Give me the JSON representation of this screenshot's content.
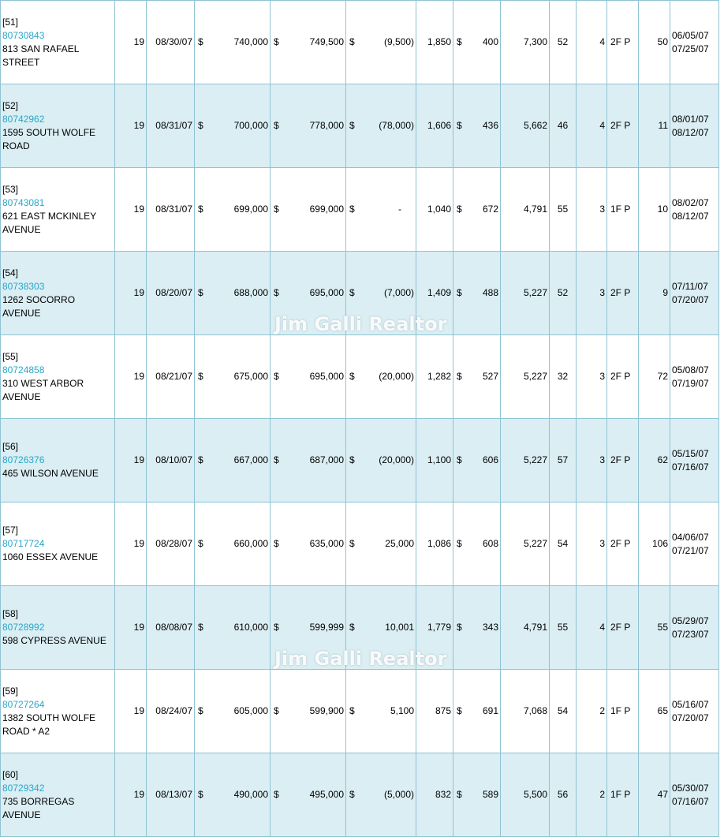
{
  "watermark": "Jim Galli Realtor",
  "currency_symbol": "$",
  "rows": [
    {
      "idx": "[51]",
      "mls": "80730843",
      "address": "813 SAN RAFAEL STREET",
      "zip": "19",
      "sold_date": "08/30/07",
      "sale_price": "740,000",
      "list_price": "749,500",
      "difference": "(9,500)",
      "sqft": "1,850",
      "price_sqft": "400",
      "lot": "7,300",
      "age": "52",
      "beds": "4",
      "style": "2F P",
      "dom": "50",
      "date1": "06/05/07",
      "date2": "07/25/07"
    },
    {
      "idx": "[52]",
      "mls": "80742962",
      "address": "1595 SOUTH WOLFE ROAD",
      "zip": "19",
      "sold_date": "08/31/07",
      "sale_price": "700,000",
      "list_price": "778,000",
      "difference": "(78,000)",
      "sqft": "1,606",
      "price_sqft": "436",
      "lot": "5,662",
      "age": "46",
      "beds": "4",
      "style": "2F P",
      "dom": "11",
      "date1": "08/01/07",
      "date2": "08/12/07"
    },
    {
      "idx": "[53]",
      "mls": "80743081",
      "address": "621 EAST MCKINLEY AVENUE",
      "zip": "19",
      "sold_date": "08/31/07",
      "sale_price": "699,000",
      "list_price": "699,000",
      "difference": "-",
      "sqft": "1,040",
      "price_sqft": "672",
      "lot": "4,791",
      "age": "55",
      "beds": "3",
      "style": "1F P",
      "dom": "10",
      "date1": "08/02/07",
      "date2": "08/12/07"
    },
    {
      "idx": "[54]",
      "mls": "80738303",
      "address": "1262 SOCORRO AVENUE",
      "zip": "19",
      "sold_date": "08/20/07",
      "sale_price": "688,000",
      "list_price": "695,000",
      "difference": "(7,000)",
      "sqft": "1,409",
      "price_sqft": "488",
      "lot": "5,227",
      "age": "52",
      "beds": "3",
      "style": "2F P",
      "dom": "9",
      "date1": "07/11/07",
      "date2": "07/20/07"
    },
    {
      "idx": "[55]",
      "mls": "80724858",
      "address": "310 WEST ARBOR AVENUE",
      "zip": "19",
      "sold_date": "08/21/07",
      "sale_price": "675,000",
      "list_price": "695,000",
      "difference": "(20,000)",
      "sqft": "1,282",
      "price_sqft": "527",
      "lot": "5,227",
      "age": "32",
      "beds": "3",
      "style": "2F P",
      "dom": "72",
      "date1": "05/08/07",
      "date2": "07/19/07"
    },
    {
      "idx": "[56]",
      "mls": "80726376",
      "address": "465 WILSON AVENUE",
      "zip": "19",
      "sold_date": "08/10/07",
      "sale_price": "667,000",
      "list_price": "687,000",
      "difference": "(20,000)",
      "sqft": "1,100",
      "price_sqft": "606",
      "lot": "5,227",
      "age": "57",
      "beds": "3",
      "style": "2F P",
      "dom": "62",
      "date1": "05/15/07",
      "date2": "07/16/07"
    },
    {
      "idx": "[57]",
      "mls": "80717724",
      "address": "1060 ESSEX AVENUE",
      "zip": "19",
      "sold_date": "08/28/07",
      "sale_price": "660,000",
      "list_price": "635,000",
      "difference": "25,000",
      "sqft": "1,086",
      "price_sqft": "608",
      "lot": "5,227",
      "age": "54",
      "beds": "3",
      "style": "2F P",
      "dom": "106",
      "date1": "04/06/07",
      "date2": "07/21/07"
    },
    {
      "idx": "[58]",
      "mls": "80728992",
      "address": "598 CYPRESS AVENUE",
      "zip": "19",
      "sold_date": "08/08/07",
      "sale_price": "610,000",
      "list_price": "599,999",
      "difference": "10,001",
      "sqft": "1,779",
      "price_sqft": "343",
      "lot": "4,791",
      "age": "55",
      "beds": "4",
      "style": "2F P",
      "dom": "55",
      "date1": "05/29/07",
      "date2": "07/23/07"
    },
    {
      "idx": "[59]",
      "mls": "80727264",
      "address": "1382 SOUTH WOLFE ROAD * A2",
      "zip": "19",
      "sold_date": "08/24/07",
      "sale_price": "605,000",
      "list_price": "599,900",
      "difference": "5,100",
      "sqft": "875",
      "price_sqft": "691",
      "lot": "7,068",
      "age": "54",
      "beds": "2",
      "style": "1F P",
      "dom": "65",
      "date1": "05/16/07",
      "date2": "07/20/07"
    },
    {
      "idx": "[60]",
      "mls": "80729342",
      "address": "735 BORREGAS AVENUE",
      "zip": "19",
      "sold_date": "08/13/07",
      "sale_price": "490,000",
      "list_price": "495,000",
      "difference": "(5,000)",
      "sqft": "832",
      "price_sqft": "589",
      "lot": "5,500",
      "age": "56",
      "beds": "2",
      "style": "1F P",
      "dom": "47",
      "date1": "05/30/07",
      "date2": "07/16/07"
    }
  ]
}
